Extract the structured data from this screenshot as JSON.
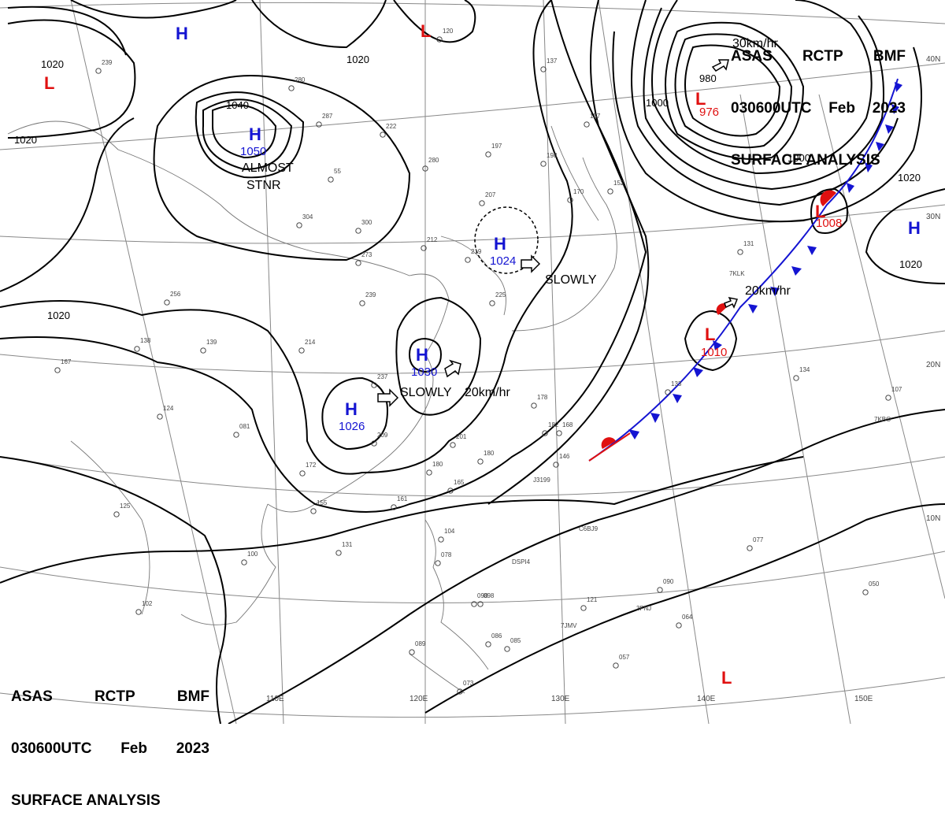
{
  "header": {
    "line1": [
      "ASAS",
      "RCTP",
      "BMF"
    ],
    "line2": [
      "030600UTC",
      "Feb",
      "2023"
    ],
    "line3": "SURFACE ANALYSIS"
  },
  "grid_labels": {
    "lon": [
      "110E",
      "120E",
      "130E",
      "140E",
      "150E"
    ],
    "lat": [
      "40N",
      "30N",
      "20N",
      "10N"
    ]
  },
  "isobar_labels": [
    "1020",
    "1020",
    "1020",
    "1040",
    "1020",
    "1000",
    "1000",
    "1020",
    "1020",
    "980"
  ],
  "pressure_systems": [
    {
      "type": "H",
      "value": "1050"
    },
    {
      "type": "H",
      "value": "1024"
    },
    {
      "type": "H",
      "value": "1030"
    },
    {
      "type": "H",
      "value": "1026"
    },
    {
      "type": "H",
      "value": ""
    },
    {
      "type": "H",
      "value": ""
    },
    {
      "type": "L",
      "value": "976"
    },
    {
      "type": "L",
      "value": "1008"
    },
    {
      "type": "L",
      "value": "1010"
    },
    {
      "type": "L",
      "value": ""
    },
    {
      "type": "L",
      "value": ""
    },
    {
      "type": "L",
      "value": ""
    }
  ],
  "motion_notes": [
    "ALMOST",
    "STNR",
    "SLOWLY",
    "SLOWLY",
    "20km/hr",
    "20km/hr",
    "30km/hr"
  ],
  "ship_ids": [
    "7KLK",
    "7KBO",
    "3FNJ",
    "7JMV",
    "DSPI4",
    "C6BJ9",
    "J3199"
  ],
  "stations": [
    "239",
    "280",
    "287",
    "222",
    "137",
    "157",
    "55",
    "304",
    "300",
    "273",
    "197",
    "198",
    "280",
    "207",
    "219",
    "212",
    "225",
    "239",
    "214",
    "139",
    "138",
    "167",
    "124",
    "256",
    "237",
    "209",
    "201",
    "180",
    "165",
    "180",
    "161",
    "155",
    "172",
    "131",
    "100",
    "104",
    "078",
    "098",
    "121",
    "090",
    "064",
    "050",
    "077",
    "134",
    "107",
    "133",
    "178",
    "182",
    "168",
    "146",
    "131",
    "152",
    "170",
    "120",
    "098",
    "086",
    "085",
    "073",
    "057",
    "089",
    "102",
    "125",
    "081"
  ],
  "colors": {
    "isobar": "#000000",
    "high": "#1414d2",
    "low": "#e01010",
    "cold_front": "#1414d2",
    "warm_front": "#e01010",
    "grid": "#888888",
    "coast": "#777777"
  }
}
